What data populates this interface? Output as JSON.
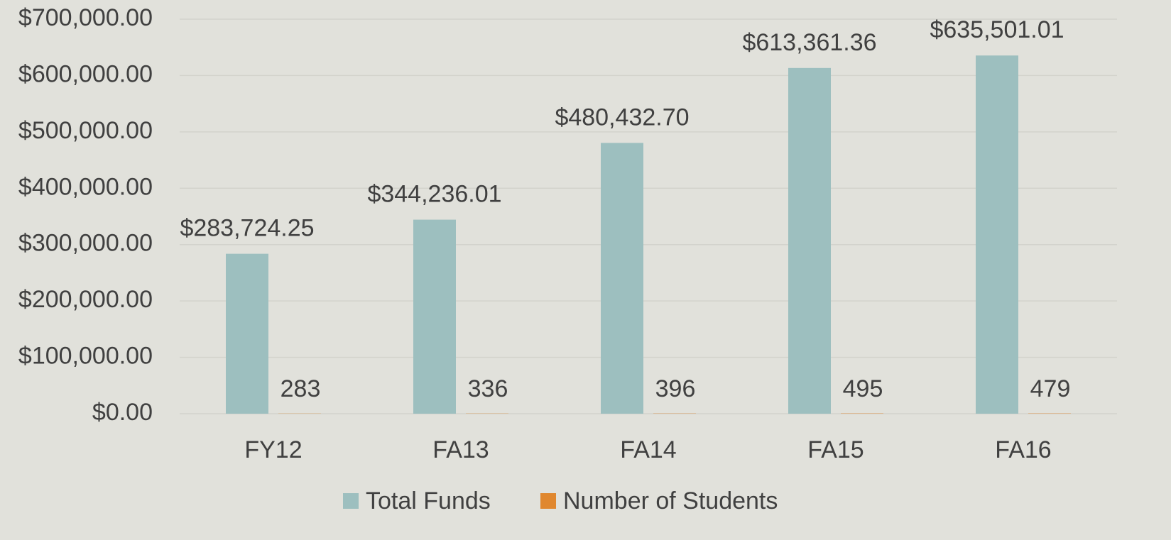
{
  "chart_data": {
    "type": "bar",
    "categories": [
      "FY12",
      "FA13",
      "FA14",
      "FA15",
      "FA16"
    ],
    "series": [
      {
        "name": "Total Funds",
        "color": "#9dbfbf",
        "values": [
          283724.25,
          344236.01,
          480432.7,
          613361.36,
          635501.01
        ],
        "value_labels": [
          "$283,724.25",
          "$344,236.01",
          "$480,432.70",
          "$613,361.36",
          "$635,501.01"
        ]
      },
      {
        "name": "Number of Students",
        "color": "#e0872e",
        "values": [
          283,
          336,
          396,
          495,
          479
        ]
      }
    ],
    "ylim": [
      0,
      700000
    ],
    "yticks": [
      {
        "value": 0,
        "label": "$0.00"
      },
      {
        "value": 100000,
        "label": "$100,000.00"
      },
      {
        "value": 200000,
        "label": "$200,000.00"
      },
      {
        "value": 300000,
        "label": "$300,000.00"
      },
      {
        "value": 400000,
        "label": "$400,000.00"
      },
      {
        "value": 500000,
        "label": "$500,000.00"
      },
      {
        "value": 600000,
        "label": "$600,000.00"
      },
      {
        "value": 700000,
        "label": "$700,000.00"
      }
    ],
    "grid": true,
    "legend": "bottom"
  }
}
